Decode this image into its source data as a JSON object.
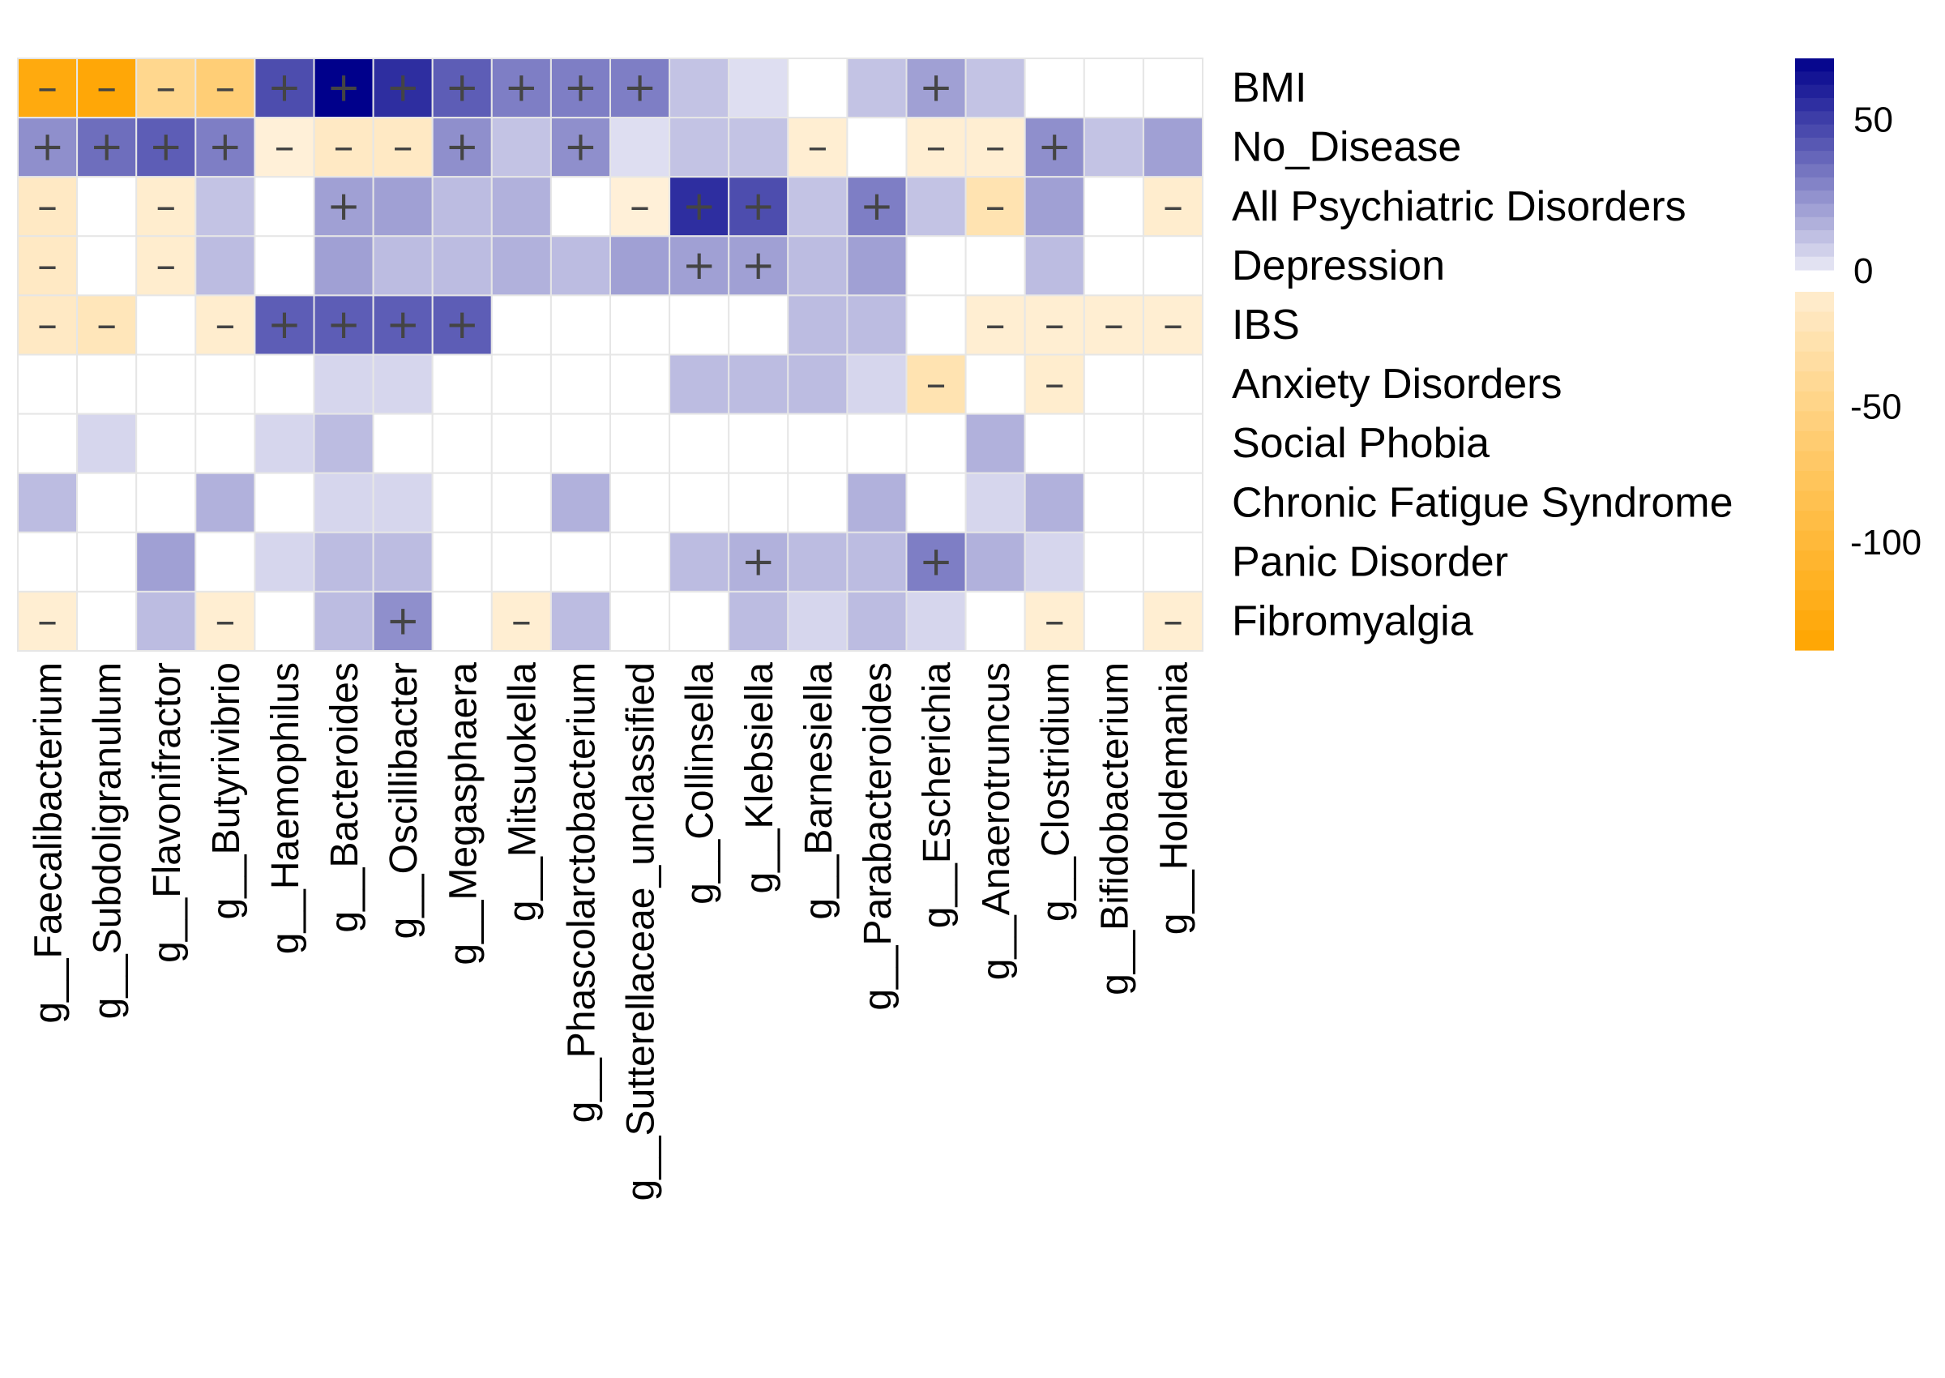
{
  "chart_data": {
    "type": "heatmap",
    "title": "",
    "xlabel": "",
    "ylabel": "",
    "rows": [
      "BMI",
      "No_Disease",
      "All Psychiatric Disorders",
      "Depression",
      "IBS",
      "Anxiety Disorders",
      "Social Phobia",
      "Chronic Fatigue Syndrome",
      "Panic Disorder",
      "Fibromyalgia"
    ],
    "columns": [
      "g__Faecalibacterium",
      "g__Subdoligranulum",
      "g__Flavonifractor",
      "g__Butyrivibrio",
      "g__Haemophilus",
      "g__Bacteroides",
      "g__Oscillibacter",
      "g__Megasphaera",
      "g__Mitsuokella",
      "g__Phascolarctobacterium",
      "g__Sutterellaceae_unclassified",
      "g__Collinsella",
      "g__Klebsiella",
      "g__Barnesiella",
      "g__Parabacteroides",
      "g__Escherichia",
      "g__Anaerotruncus",
      "g__Clostridium",
      "g__Bifidobacterium",
      "g__Holdemania"
    ],
    "values": [
      [
        -130,
        -135,
        -45,
        -60,
        45,
        70,
        55,
        40,
        30,
        30,
        30,
        10,
        3,
        0,
        10,
        20,
        10,
        0,
        0,
        0
      ],
      [
        25,
        35,
        40,
        30,
        -5,
        -15,
        -15,
        25,
        10,
        25,
        3,
        10,
        10,
        -8,
        0,
        -8,
        -8,
        25,
        10,
        20
      ],
      [
        -15,
        0,
        -10,
        10,
        0,
        20,
        20,
        12,
        15,
        0,
        -5,
        55,
        45,
        10,
        30,
        10,
        -25,
        20,
        0,
        -10
      ],
      [
        -15,
        0,
        -10,
        12,
        0,
        20,
        12,
        12,
        15,
        12,
        20,
        20,
        20,
        12,
        20,
        0,
        0,
        12,
        0,
        0
      ],
      [
        -15,
        -20,
        0,
        -10,
        40,
        40,
        40,
        40,
        0,
        0,
        0,
        0,
        0,
        12,
        12,
        0,
        -8,
        -8,
        -8,
        -8
      ],
      [
        0,
        0,
        0,
        0,
        0,
        5,
        5,
        0,
        0,
        0,
        0,
        12,
        12,
        12,
        5,
        -25,
        0,
        -10,
        0,
        0
      ],
      [
        0,
        5,
        0,
        0,
        5,
        12,
        0,
        0,
        0,
        0,
        0,
        0,
        0,
        0,
        0,
        0,
        15,
        0,
        0,
        0
      ],
      [
        12,
        0,
        0,
        15,
        0,
        5,
        5,
        0,
        0,
        15,
        0,
        0,
        0,
        0,
        15,
        0,
        5,
        15,
        0,
        0
      ],
      [
        0,
        0,
        20,
        0,
        5,
        12,
        12,
        0,
        0,
        0,
        0,
        12,
        15,
        12,
        12,
        30,
        15,
        5,
        0,
        0
      ],
      [
        -8,
        0,
        12,
        -8,
        0,
        12,
        25,
        0,
        -8,
        12,
        0,
        0,
        12,
        5,
        12,
        5,
        0,
        -8,
        0,
        -8
      ]
    ],
    "signs": [
      [
        "-",
        "-",
        "-",
        "-",
        "+",
        "+",
        "+",
        "+",
        "+",
        "+",
        "+",
        "",
        "",
        "",
        "",
        "+",
        "",
        "",
        "",
        ""
      ],
      [
        "+",
        "+",
        "+",
        "+",
        "-",
        "-",
        "-",
        "+",
        "",
        "+",
        "",
        "",
        "",
        "-",
        "",
        "-",
        "-",
        "+",
        "",
        ""
      ],
      [
        "-",
        "",
        "-",
        "",
        "",
        "+",
        "",
        "",
        "",
        "",
        "-",
        "+",
        "+",
        "",
        "+",
        "",
        "-",
        "",
        "",
        "-"
      ],
      [
        "-",
        "",
        "-",
        "",
        "",
        "",
        "",
        "",
        "",
        "",
        "",
        "+",
        "+",
        "",
        "",
        "",
        "",
        "",
        "",
        ""
      ],
      [
        "-",
        "-",
        "",
        "-",
        "+",
        "+",
        "+",
        "+",
        "",
        "",
        "",
        "",
        "",
        "",
        "",
        "",
        "-",
        "-",
        "-",
        "-"
      ],
      [
        "",
        "",
        "",
        "",
        "",
        "",
        "",
        "",
        "",
        "",
        "",
        "",
        "",
        "",
        "",
        "-",
        "",
        "-",
        "",
        ""
      ],
      [
        "",
        "",
        "",
        "",
        "",
        "",
        "",
        "",
        "",
        "",
        "",
        "",
        "",
        "",
        "",
        "",
        "",
        "",
        "",
        ""
      ],
      [
        "",
        "",
        "",
        "",
        "",
        "",
        "",
        "",
        "",
        "",
        "",
        "",
        "",
        "",
        "",
        "",
        "",
        "",
        "",
        ""
      ],
      [
        "",
        "",
        "",
        "",
        "",
        "",
        "",
        "",
        "",
        "",
        "",
        "",
        "+",
        "",
        "",
        "+",
        "",
        "",
        "",
        ""
      ],
      [
        "-",
        "",
        "",
        "-",
        "",
        "",
        "+",
        "",
        "-",
        "",
        "",
        "",
        "",
        "",
        "",
        "",
        "",
        "-",
        "",
        "-"
      ]
    ],
    "legend": {
      "placement": "right",
      "positive": {
        "min": 0,
        "max": 70,
        "ticks": [
          50,
          0
        ],
        "color_low": "#ececf7",
        "color_high": "#00008b"
      },
      "negative": {
        "min": -140,
        "max": -8,
        "ticks": [
          -50,
          -100
        ],
        "color_low": "#ffa500",
        "color_high": "#fff5e6"
      }
    },
    "grid": true
  }
}
